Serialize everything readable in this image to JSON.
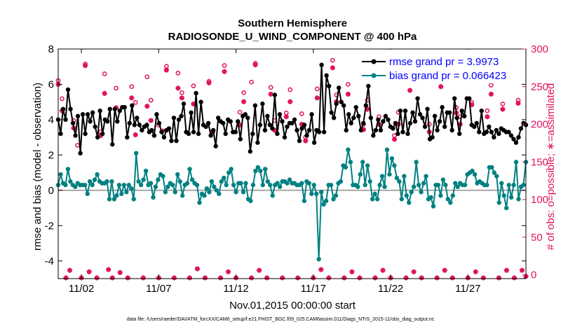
{
  "chart_data": {
    "type": "line",
    "title": "Southern Hemisphere",
    "subtitle": "RADIOSONDE_U_WIND_COMPONENT @ 400 hPa",
    "xlabel": "Nov.01,2015 00:00:00 start",
    "ylabel": "rmse and bias (model - observation)",
    "y2label": "# of obs: o=possible; ∗=assimilated",
    "footnote": "data file: /Users/raeder/DAI/ATM_forcXX/CAM6_setup/f.e21.FHIST_BGC.f09_025.CAM6assim.011/Diags_NTrS_2015-11/obs_diag_output.nc",
    "xlim": [
      0.5,
      30.75
    ],
    "ylim": [
      -5,
      8
    ],
    "y2lim": [
      -5,
      300
    ],
    "xticks": [
      {
        "x": 2,
        "label": "11/02"
      },
      {
        "x": 7,
        "label": "11/07"
      },
      {
        "x": 12,
        "label": "11/12"
      },
      {
        "x": 17,
        "label": "11/17"
      },
      {
        "x": 22,
        "label": "11/22"
      },
      {
        "x": 27,
        "label": "11/27"
      }
    ],
    "yticks": [
      -4,
      -2,
      0,
      2,
      4,
      6,
      8
    ],
    "y2ticks": [
      0,
      50,
      100,
      150,
      200,
      250,
      300
    ],
    "zero_line": 0,
    "colors": {
      "rmse": "#000000",
      "bias": "#008080",
      "obs": "#e0115f",
      "zero": "#aaaaaa",
      "legend_text": "#0000ff"
    },
    "series": [
      {
        "name": "rmse",
        "legend": "rmse grand pr = 3.9973",
        "values": [
          4.0,
          3.2,
          4.6,
          4.0,
          5.7,
          4.6,
          3.8,
          3.1,
          4.2,
          2.1,
          4.3,
          3.2,
          4.3,
          3.9,
          4.4,
          3.6,
          3.0,
          4.5,
          3.2,
          4.0,
          3.9,
          4.6,
          2.6,
          4.6,
          3.9,
          4.5,
          4.7,
          4.7,
          3.0,
          3.8,
          4.8,
          3.7,
          4.1,
          3.7,
          3.4,
          3.6,
          3.7,
          3.3,
          3.4,
          3.1,
          4.3,
          3.8,
          3.3,
          3.0,
          3.4,
          3.5,
          2.8,
          4.1,
          2.8,
          4.0,
          4.2,
          4.9,
          3.3,
          3.2,
          4.4,
          3.3,
          5.5,
          3.2,
          5.0,
          3.7,
          3.6,
          3.8,
          3.1,
          3.4,
          2.5,
          4.1,
          3.9,
          3.8,
          3.2,
          4.0,
          3.9,
          3.3,
          3.3,
          3.9,
          2.9,
          4.2,
          4.3,
          4.1,
          2.2,
          3.2,
          4.8,
          2.7,
          3.7,
          4.9,
          3.4,
          4.2,
          3.7,
          3.5,
          5.4,
          3.2,
          4.3,
          3.9,
          3.0,
          3.6,
          3.8,
          3.8,
          4.0,
          3.4,
          2.8,
          3.5,
          3.7,
          3.1,
          3.4,
          4.3,
          2.7,
          3.4,
          3.3,
          7.1,
          3.3,
          6.5,
          5.9,
          4.4,
          4.1,
          4.9,
          5.8,
          5.0,
          4.8,
          3.4,
          4.3,
          3.8,
          4.1,
          4.7,
          4.2,
          3.4,
          3.8,
          4.8,
          5.9,
          4.1,
          3.1,
          3.4,
          4.0,
          3.4,
          3.9,
          4.2,
          4.0,
          3.6,
          3.5,
          3.8,
          3.2,
          4.5,
          3.3,
          4.5,
          3.2,
          3.8,
          4.4,
          3.9,
          5.2,
          4.3,
          4.1,
          3.6,
          4.6,
          2.9,
          3.0,
          4.2,
          3.4,
          3.9,
          4.7,
          3.6,
          4.4,
          4.4,
          3.4,
          5.2,
          4.1,
          3.2,
          4.5,
          4.2,
          5.2,
          5.2,
          3.7,
          3.6,
          3.8,
          3.3,
          4.5,
          3.2,
          3.3,
          3.6,
          3.3,
          3.0,
          3.4,
          3.2,
          3.5,
          3.4,
          3.3,
          3.3,
          3.1,
          2.9,
          2.7,
          3.0,
          3.5,
          3.8,
          3.7
        ]
      },
      {
        "name": "bias",
        "legend": "bias grand pr = 0.066423",
        "values": [
          0.3,
          0.9,
          0.4,
          0.3,
          1.2,
          0.5,
          0.3,
          0.2,
          0.4,
          0.3,
          0.3,
          0.3,
          -0.2,
          0.5,
          0.3,
          0.6,
          0.9,
          0.5,
          0.4,
          0.4,
          0.5,
          -0.5,
          0.5,
          -0.5,
          -0.3,
          0.3,
          -0.2,
          0.3,
          -0.1,
          0.3,
          0.1,
          -0.5,
          2.1,
          0.5,
          0.3,
          0.6,
          1.1,
          0.3,
          0.4,
          -0.4,
          0.2,
          0.6,
          0.9,
          0.8,
          -0.1,
          0.2,
          0.4,
          0.3,
          -0.1,
          0.9,
          0.5,
          -0.3,
          0.3,
          0.4,
          1.2,
          0.6,
          0.4,
          0.3,
          -0.7,
          -0.2,
          -0.3,
          0.1,
          -0.1,
          0.5,
          0.2,
          0.0,
          -0.2,
          0.5,
          0.7,
          0.3,
          1.0,
          1.2,
          0.3,
          -0.1,
          0.4,
          0.4,
          -0.1,
          0.4,
          -0.5,
          -0.6,
          0.3,
          1.1,
          1.3,
          1.1,
          0.3,
          1.2,
          0.5,
          0.3,
          -0.3,
          0.3,
          0.4,
          0.2,
          0.5,
          0.5,
          0.4,
          0.6,
          0.4,
          0.4,
          0.3,
          0.3,
          0.4,
          -0.6,
          0.5,
          0.4,
          -0.2,
          0.3,
          -0.2,
          -3.9,
          -0.1,
          -0.8,
          -0.6,
          0.3,
          0.3,
          -0.5,
          -0.3,
          0.4,
          0.5,
          1.4,
          1.3,
          2.3,
          1.6,
          0.3,
          0.3,
          0.2,
          0.9,
          1.6,
          0.3,
          1.4,
          0.5,
          -0.5,
          -0.2,
          -0.5,
          0.3,
          0.8,
          0.2,
          2.3,
          0.9,
          1.8,
          1.4,
          0.7,
          0.5,
          -0.5,
          0.8,
          -0.3,
          -0.7,
          -0.1,
          0.2,
          1.6,
          0.3,
          -0.1,
          0.4,
          0.8,
          -0.5,
          -0.4,
          -0.9,
          0.3,
          0.3,
          -0.3,
          0.6,
          0.3,
          -0.5,
          -0.7,
          -0.3,
          0.4,
          0.2,
          0.4,
          0.3,
          0.3,
          0.9,
          1.0,
          1.1,
          0.9,
          0.4,
          0.5,
          0.4,
          0.3,
          0.3,
          1.3,
          1.3,
          1.0,
          0.8,
          -0.7,
          0.4,
          -0.3,
          -1.0,
          0.3,
          -0.4,
          0.3,
          1.6,
          -0.5,
          0.2,
          0.3,
          1.6
        ]
      }
    ],
    "obs_possible": [
      {
        "x": 0.5,
        "n": 258
      },
      {
        "x": 0.75,
        "n": 234
      },
      {
        "x": 1.5,
        "n": 205
      },
      {
        "x": 1.75,
        "n": 172
      },
      {
        "x": 2.25,
        "n": 280
      },
      {
        "x": 3.25,
        "n": 190
      },
      {
        "x": 3.5,
        "n": 267
      },
      {
        "x": 4.25,
        "n": 248
      },
      {
        "x": 5.25,
        "n": 250
      },
      {
        "x": 5.5,
        "n": 229
      },
      {
        "x": 6.25,
        "n": 263
      },
      {
        "x": 6.5,
        "n": 232
      },
      {
        "x": 7.0,
        "n": 199
      },
      {
        "x": 7.5,
        "n": 277
      },
      {
        "x": 8.25,
        "n": 268
      },
      {
        "x": 8.5,
        "n": 242
      },
      {
        "x": 9.25,
        "n": 251
      },
      {
        "x": 10.25,
        "n": 257
      },
      {
        "x": 10.5,
        "n": 191
      },
      {
        "x": 11.25,
        "n": 278
      },
      {
        "x": 12.25,
        "n": 216
      },
      {
        "x": 12.5,
        "n": 242
      },
      {
        "x": 13.0,
        "n": 256
      },
      {
        "x": 13.25,
        "n": 281
      },
      {
        "x": 14.25,
        "n": 249
      },
      {
        "x": 14.5,
        "n": 205
      },
      {
        "x": 15.25,
        "n": 215
      },
      {
        "x": 15.5,
        "n": 246
      },
      {
        "x": 16.25,
        "n": 214
      },
      {
        "x": 16.5,
        "n": 183
      },
      {
        "x": 17.25,
        "n": 247
      },
      {
        "x": 18.25,
        "n": 285
      },
      {
        "x": 18.5,
        "n": 239
      },
      {
        "x": 19.25,
        "n": 253
      },
      {
        "x": 20.25,
        "n": 200
      },
      {
        "x": 20.5,
        "n": 232
      },
      {
        "x": 21.25,
        "n": 210
      },
      {
        "x": 22.25,
        "n": 185
      },
      {
        "x": 22.5,
        "n": 216
      },
      {
        "x": 23.25,
        "n": 260
      },
      {
        "x": 24.25,
        "n": 292
      },
      {
        "x": 24.5,
        "n": 200
      },
      {
        "x": 25.25,
        "n": 262
      },
      {
        "x": 26.25,
        "n": 222
      },
      {
        "x": 26.5,
        "n": 210
      },
      {
        "x": 27.25,
        "n": 229
      },
      {
        "x": 28.25,
        "n": 218
      },
      {
        "x": 28.5,
        "n": 252
      },
      {
        "x": 29.25,
        "n": 227
      },
      {
        "x": 30.25,
        "n": 232
      }
    ],
    "obs_assimilated": [
      {
        "x": 0.5,
        "n": 253
      },
      {
        "x": 0.75,
        "n": 218
      },
      {
        "x": 1.0,
        "n": -4
      },
      {
        "x": 1.25,
        "n": 6
      },
      {
        "x": 1.5,
        "n": 195
      },
      {
        "x": 2.0,
        "n": -4
      },
      {
        "x": 2.25,
        "n": 278
      },
      {
        "x": 2.5,
        "n": 4
      },
      {
        "x": 3.0,
        "n": -4
      },
      {
        "x": 3.25,
        "n": 185
      },
      {
        "x": 3.5,
        "n": 241
      },
      {
        "x": 3.75,
        "n": 7
      },
      {
        "x": 4.0,
        "n": -4
      },
      {
        "x": 4.25,
        "n": 222
      },
      {
        "x": 4.5,
        "n": 3
      },
      {
        "x": 5.0,
        "n": -4
      },
      {
        "x": 5.25,
        "n": 235
      },
      {
        "x": 5.5,
        "n": 186
      },
      {
        "x": 6.0,
        "n": -4
      },
      {
        "x": 6.25,
        "n": 224
      },
      {
        "x": 6.5,
        "n": 205
      },
      {
        "x": 7.0,
        "n": -4
      },
      {
        "x": 7.25,
        "n": 191
      },
      {
        "x": 7.5,
        "n": 272
      },
      {
        "x": 8.0,
        "n": -4
      },
      {
        "x": 8.25,
        "n": 248
      },
      {
        "x": 8.5,
        "n": 235
      },
      {
        "x": 9.0,
        "n": -4
      },
      {
        "x": 9.25,
        "n": 227
      },
      {
        "x": 9.5,
        "n": 8
      },
      {
        "x": 10.0,
        "n": -4
      },
      {
        "x": 10.25,
        "n": 255
      },
      {
        "x": 10.5,
        "n": 190
      },
      {
        "x": 11.0,
        "n": -4
      },
      {
        "x": 11.25,
        "n": 270
      },
      {
        "x": 11.5,
        "n": 4
      },
      {
        "x": 12.0,
        "n": -4
      },
      {
        "x": 12.25,
        "n": 199
      },
      {
        "x": 12.5,
        "n": 230
      },
      {
        "x": 13.0,
        "n": -4
      },
      {
        "x": 13.25,
        "n": 279
      },
      {
        "x": 13.5,
        "n": 6
      },
      {
        "x": 14.0,
        "n": -4
      },
      {
        "x": 14.25,
        "n": 240
      },
      {
        "x": 14.5,
        "n": 192
      },
      {
        "x": 15.0,
        "n": -4
      },
      {
        "x": 15.25,
        "n": 210
      },
      {
        "x": 15.5,
        "n": 230
      },
      {
        "x": 16.0,
        "n": -4
      },
      {
        "x": 16.25,
        "n": 200
      },
      {
        "x": 16.5,
        "n": 178
      },
      {
        "x": 17.0,
        "n": -4
      },
      {
        "x": 17.25,
        "n": 235
      },
      {
        "x": 17.5,
        "n": 7
      },
      {
        "x": 18.0,
        "n": -4
      },
      {
        "x": 18.25,
        "n": 275
      },
      {
        "x": 18.5,
        "n": 230
      },
      {
        "x": 19.0,
        "n": -4
      },
      {
        "x": 19.25,
        "n": 240
      },
      {
        "x": 19.5,
        "n": 4
      },
      {
        "x": 20.0,
        "n": -4
      },
      {
        "x": 20.25,
        "n": 193
      },
      {
        "x": 20.5,
        "n": 220
      },
      {
        "x": 21.0,
        "n": -4
      },
      {
        "x": 21.25,
        "n": 200
      },
      {
        "x": 21.5,
        "n": 6
      },
      {
        "x": 22.0,
        "n": -4
      },
      {
        "x": 22.25,
        "n": 180
      },
      {
        "x": 22.5,
        "n": 200
      },
      {
        "x": 23.0,
        "n": -4
      },
      {
        "x": 23.25,
        "n": 245
      },
      {
        "x": 23.5,
        "n": 4
      },
      {
        "x": 24.0,
        "n": -4
      },
      {
        "x": 24.25,
        "n": 272
      },
      {
        "x": 24.5,
        "n": 190
      },
      {
        "x": 25.0,
        "n": -4
      },
      {
        "x": 25.25,
        "n": 250
      },
      {
        "x": 25.5,
        "n": 6
      },
      {
        "x": 26.0,
        "n": -4
      },
      {
        "x": 26.25,
        "n": 215
      },
      {
        "x": 26.5,
        "n": 200
      },
      {
        "x": 27.0,
        "n": -4
      },
      {
        "x": 27.25,
        "n": 226
      },
      {
        "x": 27.5,
        "n": 4
      },
      {
        "x": 28.0,
        "n": -4
      },
      {
        "x": 28.25,
        "n": 210
      },
      {
        "x": 28.5,
        "n": 240
      },
      {
        "x": 29.0,
        "n": -4
      },
      {
        "x": 29.25,
        "n": 220
      },
      {
        "x": 29.5,
        "n": 6
      },
      {
        "x": 30.0,
        "n": -4
      },
      {
        "x": 30.25,
        "n": 228
      },
      {
        "x": 30.5,
        "n": 6
      },
      {
        "x": 30.75,
        "n": -2
      }
    ]
  }
}
